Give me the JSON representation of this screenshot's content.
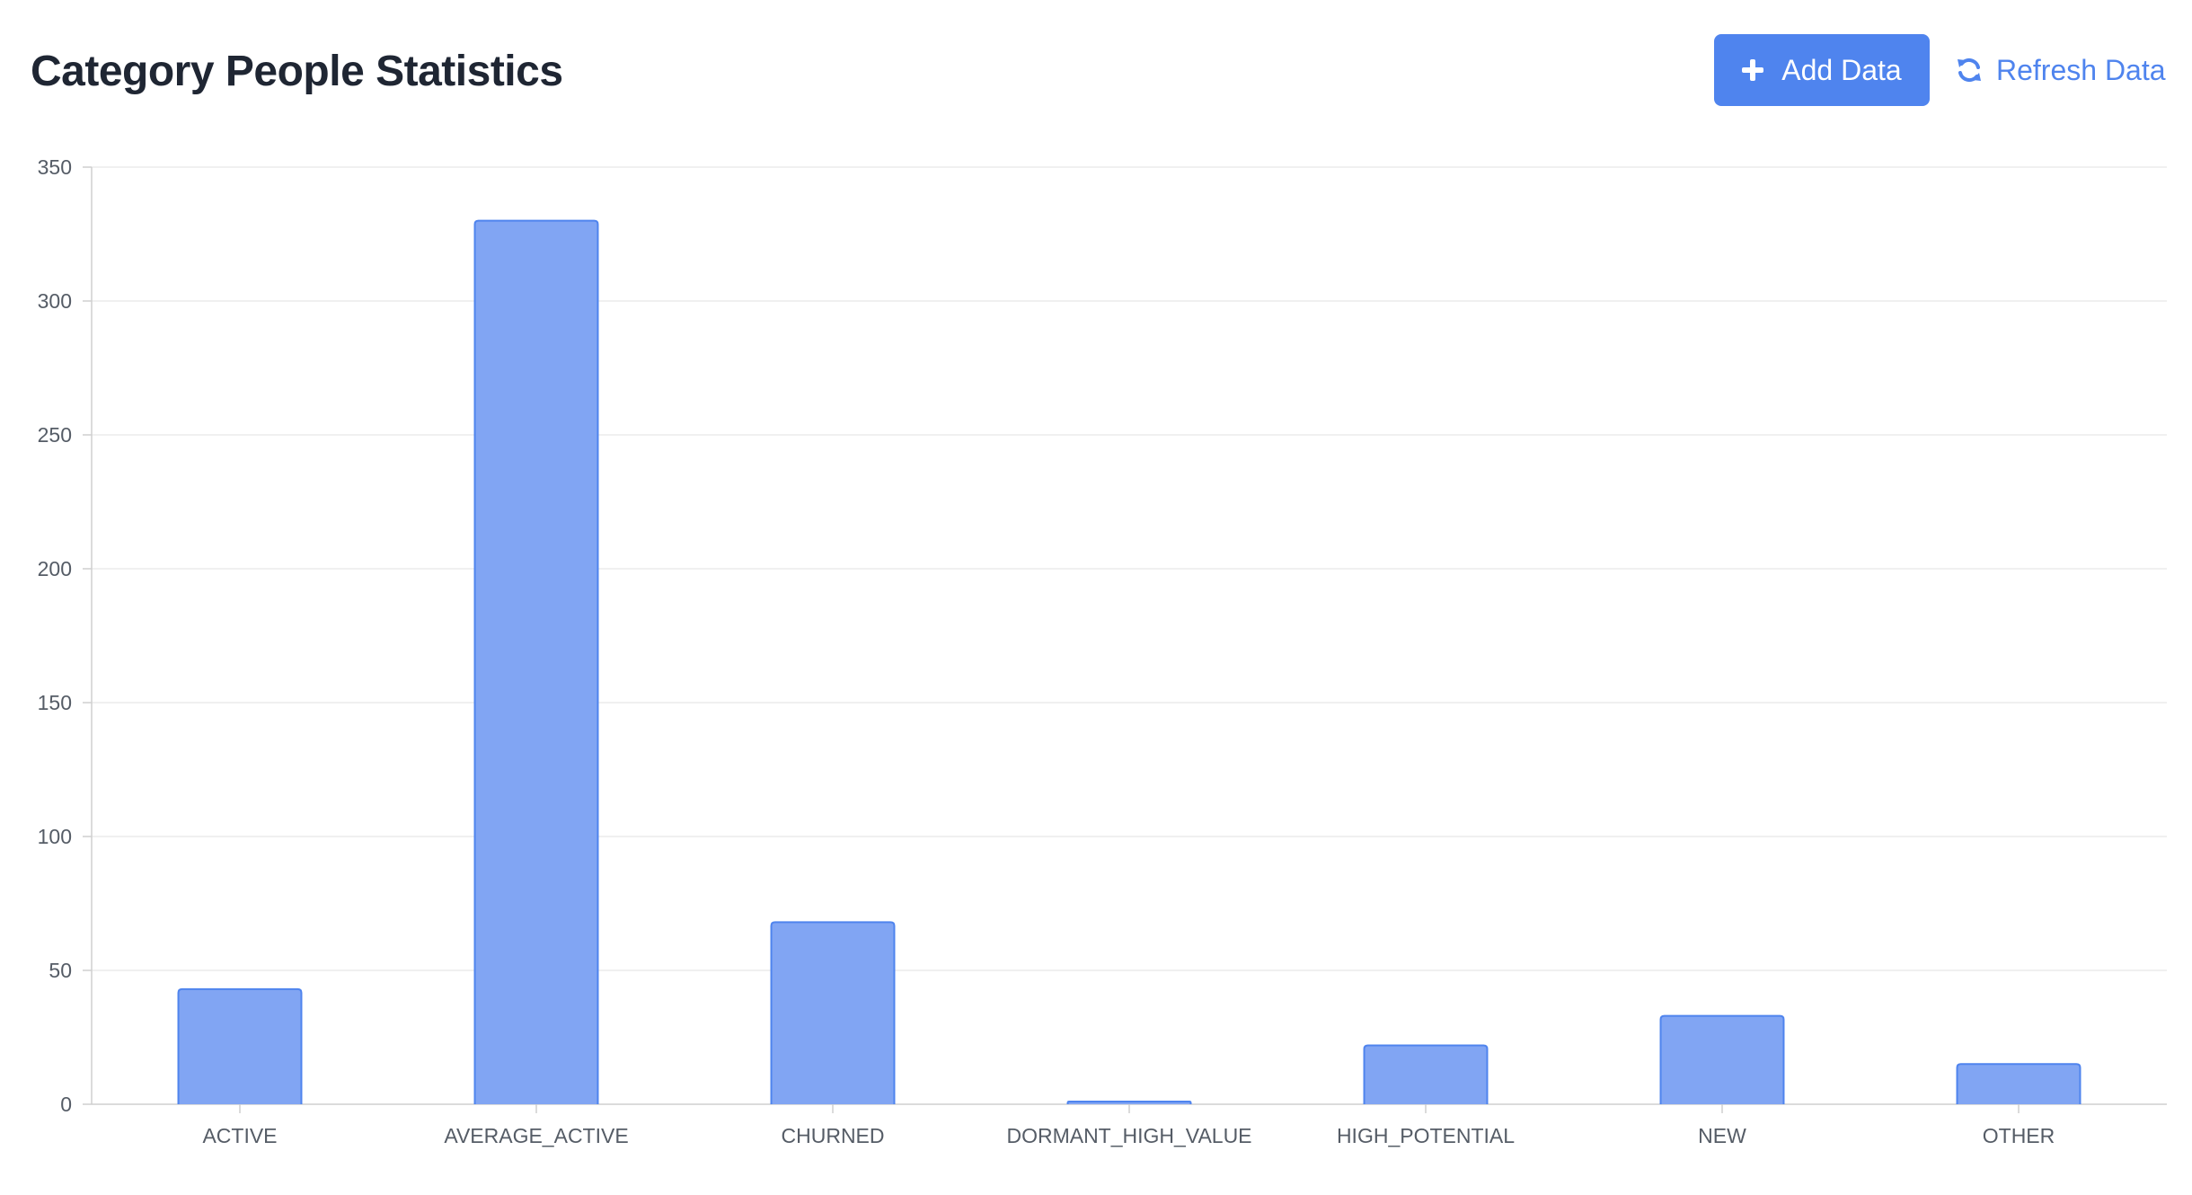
{
  "header": {
    "title": "Category People Statistics",
    "add_button_label": "Add Data",
    "refresh_button_label": "Refresh Data"
  },
  "colors": {
    "accent": "#4f84ee",
    "bar_fill": "#81a5f3",
    "bar_stroke": "#4f84ee",
    "grid": "#ececec",
    "axis": "#cfcfcf"
  },
  "icons": {
    "add": "plus-icon",
    "refresh": "refresh-icon"
  },
  "chart_data": {
    "type": "bar",
    "categories": [
      "ACTIVE",
      "AVERAGE_ACTIVE",
      "CHURNED",
      "DORMANT_HIGH_VALUE",
      "HIGH_POTENTIAL",
      "NEW",
      "OTHER"
    ],
    "values": [
      43,
      330,
      68,
      1,
      22,
      33,
      15
    ],
    "yticks": [
      0,
      50,
      100,
      150,
      200,
      250,
      300,
      350
    ],
    "ylim": [
      0,
      350
    ],
    "grid": true,
    "legend": "none"
  }
}
